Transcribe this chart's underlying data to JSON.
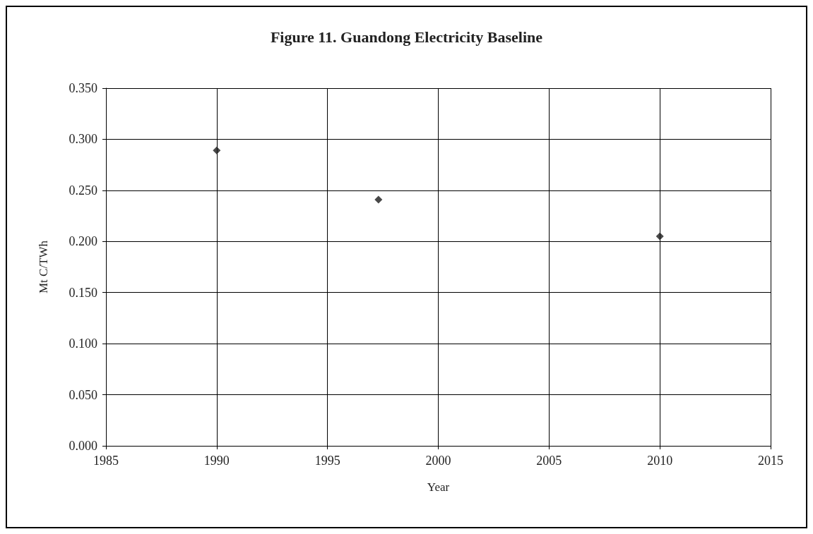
{
  "chart_data": {
    "type": "scatter",
    "title": "Figure 11. Guandong Electricity Baseline",
    "xlabel": "Year",
    "ylabel": "Mt C/TWh",
    "x": [
      1990,
      1997.3,
      2010
    ],
    "series": [
      {
        "color": "#1a1a1a",
        "values": [
          0.289,
          0.241,
          0.205
        ]
      }
    ],
    "xlim": [
      1985,
      2015
    ],
    "xticks": [
      1985,
      1990,
      1995,
      2000,
      2005,
      2010,
      2015
    ],
    "ylim": [
      0,
      0.35
    ],
    "yticks": [
      {
        "value": 0,
        "label": "0.000"
      },
      {
        "value": 0.05,
        "label": "0.050"
      },
      {
        "value": 0.1,
        "label": "0.100"
      },
      {
        "value": 0.15,
        "label": "0.150"
      },
      {
        "value": 0.2,
        "label": "0.200"
      },
      {
        "value": 0.25,
        "label": "0.250"
      },
      {
        "value": 0.3,
        "label": "0.300"
      },
      {
        "value": 0.35,
        "label": "0.350"
      }
    ],
    "grid": true,
    "marker": "diamond"
  }
}
